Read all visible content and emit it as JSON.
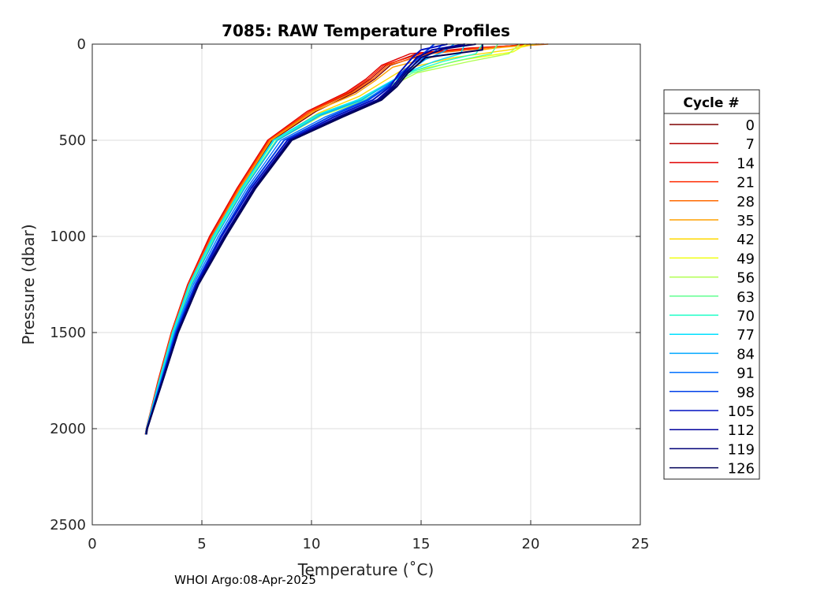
{
  "chart_data": {
    "type": "line",
    "title": "7085: RAW Temperature Profiles",
    "xlabel": "Temperature (˚C)",
    "ylabel": "Pressure (dbar)",
    "xlim": [
      0,
      25
    ],
    "ylim": [
      2500,
      0
    ],
    "y_reversed": true,
    "x_ticks": [
      "0",
      "5",
      "10",
      "15",
      "20",
      "25"
    ],
    "x_tick_values": [
      0,
      5,
      10,
      15,
      20,
      25
    ],
    "y_ticks": [
      "0",
      "500",
      "1000",
      "1500",
      "2000",
      "2500"
    ],
    "y_tick_values": [
      0,
      500,
      1000,
      1500,
      2000,
      2500
    ],
    "grid": true,
    "legend": {
      "title": "Cycle #",
      "placement": "right",
      "entries": [
        "0",
        "7",
        "14",
        "21",
        "28",
        "35",
        "42",
        "49",
        "56",
        "63",
        "70",
        "77",
        "84",
        "91",
        "98",
        "105",
        "112",
        "119",
        "126"
      ],
      "colors": [
        "#7f0000",
        "#b30000",
        "#e00000",
        "#ff2a00",
        "#ff6a00",
        "#ffa000",
        "#ffd800",
        "#f0ff10",
        "#b0ff50",
        "#60ff90",
        "#20ffc8",
        "#00e0ff",
        "#00a8ff",
        "#0070ff",
        "#0040e8",
        "#0010c0",
        "#00009c",
        "#000078",
        "#000058"
      ]
    },
    "series": [
      {
        "name": "0",
        "color": "#7f0000",
        "x": [
          20.0,
          17.8,
          15.2,
          13.6,
          12.9,
          12.0,
          10.2,
          8.2,
          6.8,
          5.5,
          4.5,
          3.7,
          3.1,
          2.75,
          2.5,
          2.45
        ],
        "y": [
          0,
          20,
          50,
          110,
          180,
          250,
          350,
          500,
          750,
          1000,
          1250,
          1500,
          1750,
          1900,
          2000,
          2030
        ]
      },
      {
        "name": "7",
        "color": "#b30000",
        "x": [
          20.3,
          17.5,
          14.8,
          13.4,
          12.7,
          11.8,
          10.0,
          8.1,
          6.7,
          5.4,
          4.4,
          3.65,
          3.05,
          2.7,
          2.47,
          2.43
        ],
        "y": [
          0,
          20,
          50,
          110,
          180,
          250,
          350,
          500,
          750,
          1000,
          1250,
          1500,
          1750,
          1900,
          2000,
          2030
        ]
      },
      {
        "name": "14",
        "color": "#e00000",
        "x": [
          20.6,
          17.2,
          14.5,
          13.2,
          12.5,
          11.6,
          9.8,
          8.0,
          6.6,
          5.35,
          4.35,
          3.6,
          3.0,
          2.68,
          2.46,
          2.42
        ],
        "y": [
          0,
          20,
          50,
          110,
          180,
          250,
          350,
          500,
          750,
          1000,
          1250,
          1500,
          1750,
          1900,
          2000,
          2030
        ]
      },
      {
        "name": "21",
        "color": "#ff2a00",
        "x": [
          20.4,
          17.6,
          15.0,
          13.3,
          12.6,
          11.7,
          9.9,
          8.05,
          6.65,
          5.4,
          4.38,
          3.62,
          3.02,
          2.69,
          2.46,
          2.42
        ],
        "y": [
          0,
          20,
          50,
          110,
          180,
          250,
          350,
          500,
          750,
          1000,
          1250,
          1500,
          1750,
          1900,
          2000,
          2030
        ]
      },
      {
        "name": "28",
        "color": "#ff6a00",
        "x": [
          20.8,
          18.0,
          15.4,
          13.5,
          12.8,
          11.9,
          10.0,
          8.1,
          6.7,
          5.45,
          4.4,
          3.63,
          3.03,
          2.7,
          2.47,
          2.43
        ],
        "y": [
          0,
          20,
          50,
          110,
          180,
          250,
          350,
          500,
          750,
          1000,
          1250,
          1500,
          1750,
          1900,
          2000,
          2030
        ]
      },
      {
        "name": "35",
        "color": "#ffa000",
        "x": [
          20.5,
          18.4,
          15.8,
          13.7,
          12.9,
          12.0,
          10.1,
          8.15,
          6.75,
          5.5,
          4.45,
          3.65,
          3.05,
          2.7,
          2.47,
          2.43
        ],
        "y": [
          0,
          20,
          60,
          120,
          190,
          260,
          350,
          500,
          750,
          1000,
          1250,
          1500,
          1750,
          1900,
          2000,
          2030
        ]
      },
      {
        "name": "42",
        "color": "#ffd800",
        "x": [
          20.2,
          19.0,
          16.5,
          14.2,
          13.2,
          12.2,
          10.3,
          8.3,
          6.85,
          5.55,
          4.5,
          3.7,
          3.08,
          2.72,
          2.48,
          2.44
        ],
        "y": [
          0,
          30,
          70,
          130,
          200,
          270,
          360,
          500,
          750,
          1000,
          1250,
          1500,
          1750,
          1900,
          2000,
          2030
        ]
      },
      {
        "name": "49",
        "color": "#f0ff10",
        "x": [
          19.8,
          19.2,
          17.0,
          14.6,
          13.4,
          12.4,
          10.4,
          8.4,
          6.9,
          5.6,
          4.55,
          3.72,
          3.1,
          2.73,
          2.48,
          2.44
        ],
        "y": [
          0,
          40,
          80,
          140,
          210,
          280,
          360,
          500,
          750,
          1000,
          1250,
          1500,
          1750,
          1900,
          2000,
          2030
        ]
      },
      {
        "name": "56",
        "color": "#b0ff50",
        "x": [
          19.5,
          19.0,
          17.2,
          14.8,
          13.6,
          12.5,
          10.5,
          8.45,
          6.95,
          5.65,
          4.55,
          3.72,
          3.1,
          2.73,
          2.48,
          2.44
        ],
        "y": [
          0,
          50,
          90,
          150,
          220,
          290,
          370,
          500,
          750,
          1000,
          1250,
          1500,
          1750,
          1900,
          2000,
          2030
        ]
      },
      {
        "name": "63",
        "color": "#60ff90",
        "x": [
          18.5,
          18.2,
          16.5,
          14.6,
          13.5,
          12.4,
          10.4,
          8.4,
          6.9,
          5.6,
          4.5,
          3.7,
          3.08,
          2.72,
          2.48,
          2.44
        ],
        "y": [
          0,
          50,
          90,
          150,
          220,
          290,
          370,
          500,
          750,
          1000,
          1250,
          1500,
          1750,
          1900,
          2000,
          2030
        ]
      },
      {
        "name": "70",
        "color": "#20ffc8",
        "x": [
          17.8,
          17.5,
          16.0,
          14.4,
          13.3,
          12.2,
          10.3,
          8.3,
          6.85,
          5.55,
          4.45,
          3.68,
          3.06,
          2.71,
          2.47,
          2.43
        ],
        "y": [
          0,
          50,
          90,
          150,
          220,
          290,
          370,
          500,
          750,
          1000,
          1250,
          1500,
          1750,
          1900,
          2000,
          2030
        ]
      },
      {
        "name": "77",
        "color": "#00e0ff",
        "x": [
          17.0,
          16.8,
          15.6,
          14.3,
          13.2,
          12.1,
          10.2,
          8.25,
          6.8,
          5.5,
          4.42,
          3.66,
          3.05,
          2.71,
          2.47,
          2.43
        ],
        "y": [
          0,
          50,
          90,
          150,
          220,
          290,
          370,
          500,
          750,
          1000,
          1250,
          1500,
          1750,
          1900,
          2000,
          2030
        ]
      },
      {
        "name": "84",
        "color": "#00a8ff",
        "x": [
          16.5,
          16.0,
          15.2,
          14.3,
          13.3,
          12.3,
          10.4,
          8.45,
          6.95,
          5.65,
          4.55,
          3.74,
          3.12,
          2.74,
          2.48,
          2.44
        ],
        "y": [
          0,
          40,
          80,
          150,
          220,
          290,
          370,
          500,
          750,
          1000,
          1250,
          1500,
          1750,
          1900,
          2000,
          2030
        ]
      },
      {
        "name": "91",
        "color": "#0070ff",
        "x": [
          16.0,
          15.6,
          15.0,
          14.2,
          13.4,
          12.5,
          10.6,
          8.6,
          7.05,
          5.75,
          4.62,
          3.78,
          3.14,
          2.75,
          2.49,
          2.45
        ],
        "y": [
          0,
          40,
          80,
          150,
          220,
          290,
          380,
          500,
          750,
          1000,
          1250,
          1500,
          1750,
          1900,
          2000,
          2030
        ]
      },
      {
        "name": "98",
        "color": "#0040e8",
        "x": [
          15.6,
          15.2,
          14.8,
          14.1,
          13.5,
          12.6,
          10.8,
          8.75,
          7.15,
          5.85,
          4.7,
          3.82,
          3.16,
          2.76,
          2.49,
          2.45
        ],
        "y": [
          0,
          40,
          80,
          150,
          220,
          290,
          380,
          500,
          750,
          1000,
          1250,
          1500,
          1750,
          1900,
          2000,
          2030
        ]
      },
      {
        "name": "105",
        "color": "#0010c0",
        "x": [
          16.2,
          15.0,
          14.6,
          14.0,
          13.6,
          12.8,
          11.0,
          8.9,
          7.25,
          5.9,
          4.75,
          3.85,
          3.18,
          2.77,
          2.5,
          2.46
        ],
        "y": [
          0,
          30,
          70,
          150,
          220,
          290,
          380,
          500,
          750,
          1000,
          1250,
          1500,
          1750,
          1900,
          2000,
          2030
        ]
      },
      {
        "name": "112",
        "color": "#00009c",
        "x": [
          17.0,
          15.5,
          14.8,
          14.2,
          13.7,
          13.0,
          11.2,
          9.0,
          7.35,
          6.0,
          4.8,
          3.88,
          3.2,
          2.78,
          2.5,
          2.46
        ],
        "y": [
          0,
          30,
          70,
          150,
          220,
          290,
          380,
          500,
          750,
          1000,
          1250,
          1500,
          1750,
          1900,
          2000,
          2030
        ]
      },
      {
        "name": "119",
        "color": "#000078",
        "x": [
          17.5,
          16.0,
          15.0,
          14.3,
          13.8,
          13.1,
          11.3,
          9.05,
          7.4,
          6.05,
          4.82,
          3.9,
          3.21,
          2.78,
          2.5,
          2.46
        ],
        "y": [
          0,
          25,
          70,
          150,
          220,
          290,
          380,
          500,
          750,
          1000,
          1250,
          1500,
          1750,
          1900,
          2000,
          2030
        ]
      },
      {
        "name": "126",
        "color": "#000058",
        "x": [
          17.8,
          17.8,
          15.2,
          14.4,
          13.9,
          13.2,
          11.4,
          9.1,
          7.45,
          6.1,
          4.85,
          3.92,
          3.22,
          2.79,
          2.51,
          2.47
        ],
        "y": [
          0,
          30,
          70,
          150,
          220,
          290,
          380,
          500,
          750,
          1000,
          1250,
          1500,
          1750,
          1900,
          2000,
          2030
        ]
      }
    ]
  },
  "footer": {
    "credit": "WHOI Argo:08-Apr-2025"
  }
}
